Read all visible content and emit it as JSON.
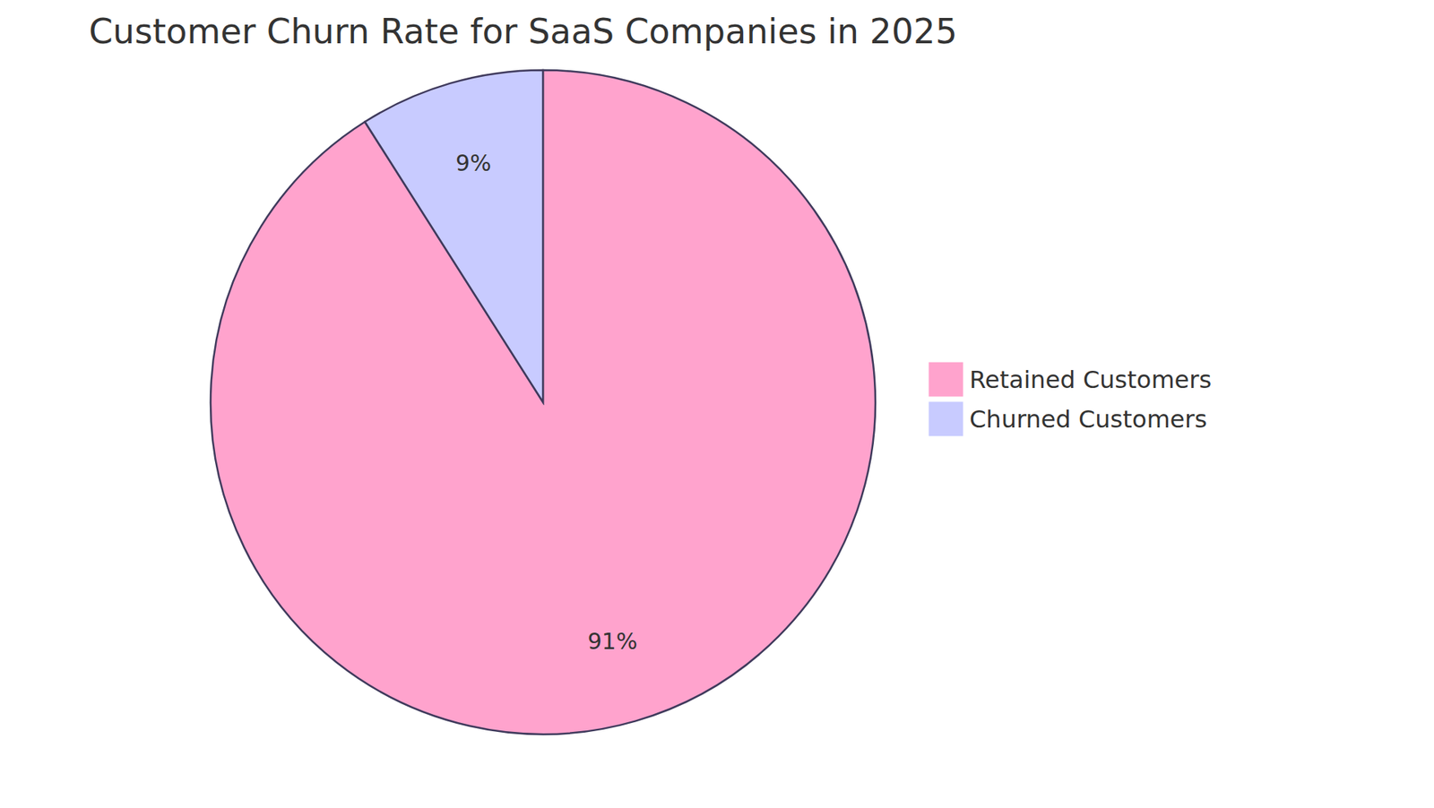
{
  "chart_data": {
    "type": "pie",
    "title": "Customer Churn Rate for SaaS Companies in 2025",
    "categories": [
      "Retained Customers",
      "Churned Customers"
    ],
    "values": [
      91,
      9
    ],
    "value_labels": [
      "91%",
      "9%"
    ],
    "colors": [
      "#ffa3cd",
      "#c8cbff"
    ],
    "data_labels": true,
    "legend": "right"
  }
}
